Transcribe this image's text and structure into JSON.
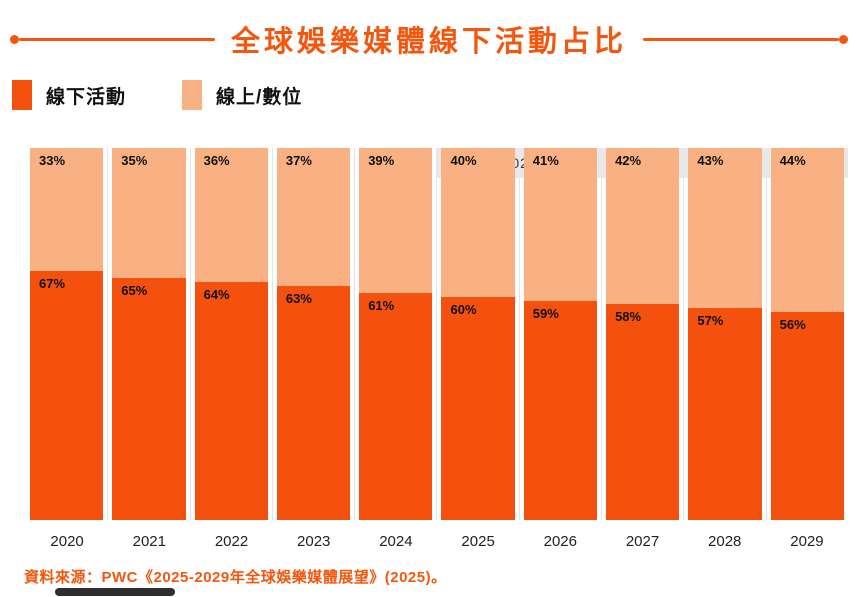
{
  "title": "全球娛樂媒體線下活動占比",
  "colors": {
    "accent": "#F3570F",
    "offline": "#F4510E",
    "online": "#F9B183",
    "band_background": "#E8E8E8"
  },
  "legend": [
    {
      "label": "線下活動",
      "color": "#F4510E"
    },
    {
      "label": "線上/數位",
      "color": "#F9B183"
    }
  ],
  "annotation": "預估值 (2025 年後)",
  "source": "資料來源：PWC《2025-2029年全球娛樂媒體展望》(2025)。",
  "chart_data": {
    "type": "bar",
    "stacked": true,
    "title": "全球娛樂媒體線下活動占比",
    "categories": [
      "2020",
      "2021",
      "2022",
      "2023",
      "2024",
      "2025",
      "2026",
      "2027",
      "2028",
      "2029"
    ],
    "series": [
      {
        "name": "線下活動",
        "color": "#F4510E",
        "values": [
          67,
          65,
          64,
          63,
          61,
          60,
          59,
          58,
          57,
          56
        ]
      },
      {
        "name": "線上/數位",
        "color": "#F9B183",
        "values": [
          33,
          35,
          36,
          37,
          39,
          40,
          41,
          42,
          43,
          44
        ]
      }
    ],
    "value_suffix": "%",
    "ylim": [
      0,
      100
    ],
    "xlabel": "",
    "ylabel": "",
    "grid": false,
    "legend_position": "top-left",
    "annotation": "預估值 (2025 年後)",
    "estimated_from_category": "2025"
  }
}
